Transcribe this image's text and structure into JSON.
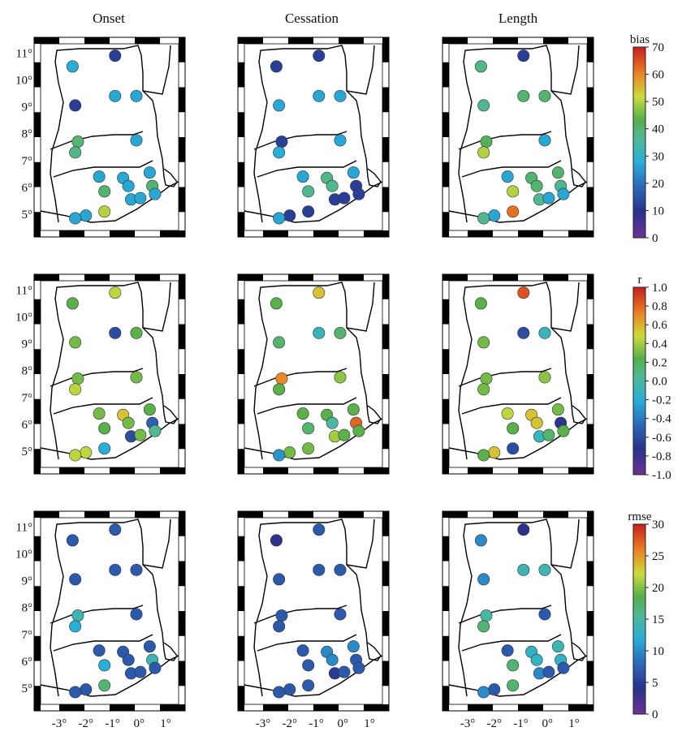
{
  "figure": {
    "column_titles": [
      "Onset",
      "Cessation",
      "Length"
    ],
    "lat_ticks": [
      "11°",
      "10°",
      "9°",
      "8°",
      "7°",
      "6°",
      "5°"
    ],
    "lon_ticks": [
      "-3°",
      "-2°",
      "-1°",
      "0°",
      "1°"
    ]
  },
  "chart_data": {
    "type": "scatter",
    "subtype": "station map panels (3 rows × 3 columns) with colorbars",
    "lat_range": [
      4.6,
      11.5
    ],
    "lon_range": [
      -3.5,
      1.6
    ],
    "stations": [
      {
        "lon": -2.5,
        "lat": 10.5
      },
      {
        "lon": -0.9,
        "lat": 10.9
      },
      {
        "lon": -2.4,
        "lat": 9.05
      },
      {
        "lon": -0.9,
        "lat": 9.4
      },
      {
        "lon": -0.1,
        "lat": 9.4
      },
      {
        "lon": -2.3,
        "lat": 7.7
      },
      {
        "lon": -2.4,
        "lat": 7.3
      },
      {
        "lon": -0.1,
        "lat": 7.75
      },
      {
        "lon": -1.5,
        "lat": 6.4
      },
      {
        "lon": -0.6,
        "lat": 6.35
      },
      {
        "lon": -1.3,
        "lat": 5.85
      },
      {
        "lon": -0.4,
        "lat": 6.05
      },
      {
        "lon": 0.4,
        "lat": 6.55
      },
      {
        "lon": 0.5,
        "lat": 6.05
      },
      {
        "lon": -0.3,
        "lat": 5.55
      },
      {
        "lon": 0.05,
        "lat": 5.6
      },
      {
        "lon": 0.6,
        "lat": 5.75
      },
      {
        "lon": -1.3,
        "lat": 5.1
      },
      {
        "lon": -2.0,
        "lat": 4.95
      },
      {
        "lon": -2.4,
        "lat": 4.85
      }
    ],
    "colorbars": [
      {
        "label": "bias",
        "min": 0,
        "max": 70,
        "ticks": [
          0,
          10,
          20,
          30,
          40,
          50,
          60,
          70
        ],
        "tick_labels": [
          "0",
          "10",
          "20",
          "30",
          "40",
          "50",
          "60",
          "70"
        ]
      },
      {
        "label": "r",
        "min": -1,
        "max": 1,
        "ticks": [
          -1,
          -0.8,
          -0.6,
          -0.4,
          -0.2,
          0,
          0.2,
          0.4,
          0.6,
          0.8,
          1
        ],
        "tick_labels": [
          "-1.0",
          "-0.8",
          "-0.6",
          "-0.4",
          "-0.2",
          "0.0",
          "0.2",
          "0.4",
          "0.6",
          "0.8",
          "1.0"
        ]
      },
      {
        "label": "rmse",
        "min": 0,
        "max": 30,
        "ticks": [
          0,
          5,
          10,
          15,
          20,
          25,
          30
        ],
        "tick_labels": [
          "0",
          "5",
          "10",
          "15",
          "20",
          "25",
          "30"
        ]
      }
    ],
    "panels": [
      {
        "row": 0,
        "column": "Onset",
        "metric": "bias",
        "values": [
          28,
          12,
          12,
          27,
          27,
          40,
          38,
          27,
          27,
          27,
          40,
          27,
          27,
          40,
          27,
          27,
          27,
          50,
          27,
          27
        ]
      },
      {
        "row": 0,
        "column": "Cessation",
        "metric": "bias",
        "values": [
          12,
          12,
          27,
          27,
          27,
          12,
          28,
          27,
          27,
          38,
          37,
          37,
          27,
          12,
          12,
          12,
          12,
          12,
          12,
          27
        ]
      },
      {
        "row": 0,
        "column": "Length",
        "metric": "bias",
        "values": [
          38,
          12,
          37,
          40,
          40,
          42,
          50,
          27,
          27,
          40,
          50,
          40,
          40,
          37,
          37,
          27,
          27,
          62,
          27,
          37
        ]
      },
      {
        "row": 1,
        "column": "Onset",
        "metric": "r",
        "values": [
          0.25,
          0.45,
          0.3,
          -0.6,
          0.25,
          0.3,
          0.45,
          0.3,
          0.3,
          0.55,
          0.25,
          0.3,
          0.25,
          -0.5,
          -0.6,
          0.3,
          0.05,
          -0.2,
          0.45,
          0.45
        ]
      },
      {
        "row": 1,
        "column": "Cessation",
        "metric": "r",
        "values": [
          0.25,
          0.55,
          0.15,
          -0.1,
          0.15,
          0.7,
          0.25,
          0.35,
          0.25,
          0.25,
          0.15,
          0.0,
          0.25,
          0.8,
          0.4,
          0.25,
          0.25,
          0.3,
          0.3,
          -0.3
        ]
      },
      {
        "row": 1,
        "column": "Length",
        "metric": "r",
        "values": [
          0.25,
          0.85,
          0.3,
          -0.6,
          -0.1,
          0.3,
          0.3,
          0.35,
          0.45,
          0.55,
          0.25,
          0.55,
          0.3,
          -0.7,
          -0.1,
          0.15,
          0.25,
          -0.6,
          0.55,
          0.25
        ]
      },
      {
        "row": 2,
        "column": "Onset",
        "metric": "rmse",
        "values": [
          7,
          7,
          7,
          7,
          7,
          14,
          12,
          7,
          7,
          7,
          12,
          7,
          7,
          14,
          7,
          7,
          7,
          17,
          7,
          7
        ]
      },
      {
        "row": 2,
        "column": "Cessation",
        "metric": "rmse",
        "values": [
          4,
          7,
          7,
          7,
          7,
          7,
          7,
          7,
          7,
          10,
          7,
          10,
          10,
          7,
          5,
          7,
          7,
          7,
          7,
          7
        ]
      },
      {
        "row": 2,
        "column": "Length",
        "metric": "rmse",
        "values": [
          10,
          4,
          10,
          14,
          14,
          15,
          17,
          7,
          7,
          13,
          17,
          13,
          14,
          13,
          10,
          7,
          7,
          17,
          7,
          10
        ]
      }
    ]
  }
}
